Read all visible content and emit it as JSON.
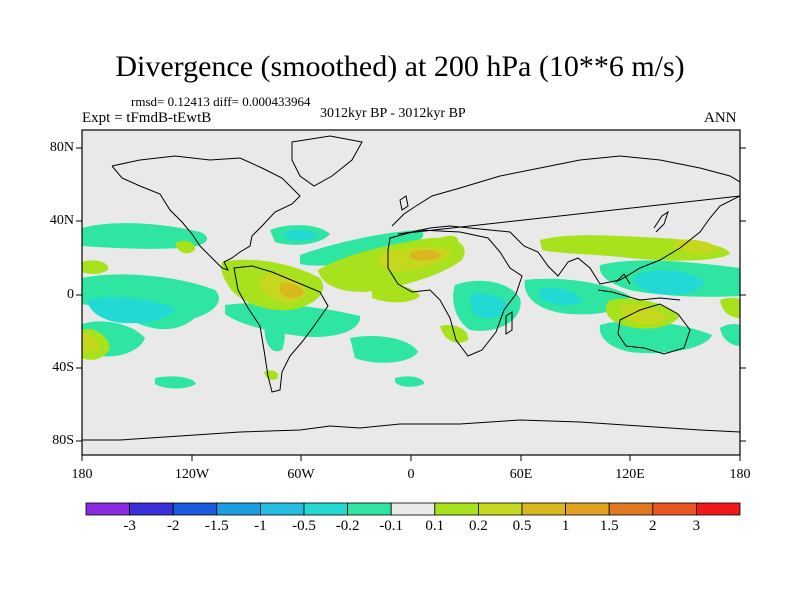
{
  "title": "Divergence (smoothed) at 200 hPa (10**6 m/s)",
  "stats": "rmsd= 0.12413 diff= 0.000433964",
  "experiment": "Expt = tFmdB-tEwtB",
  "period": "3012kyr BP - 3012kyr BP",
  "season": "ANN",
  "lat_labels": [
    "80N",
    "40N",
    "0",
    "40S",
    "80S"
  ],
  "lon_labels": [
    "180",
    "120W",
    "60W",
    "0",
    "60E",
    "120E",
    "180"
  ],
  "colorbar": {
    "colors": [
      "#8b2be2",
      "#3a2fd8",
      "#1a5be0",
      "#1a9ee0",
      "#22bde0",
      "#22d9d4",
      "#2ee6a2",
      "#e9e9e9",
      "#a8e21c",
      "#c6d81e",
      "#d8b81e",
      "#e0a020",
      "#e07a20",
      "#e85820",
      "#f01818"
    ],
    "labels": [
      "-3",
      "-2",
      "-1.5",
      "-1",
      "-0.5",
      "-0.2",
      "-0.1",
      "0.1",
      "0.2",
      "0.5",
      "1",
      "1.5",
      "2",
      "3"
    ]
  },
  "field_colors": {
    "background": "#e9e9e9",
    "neg_weak": "#2ee6a2",
    "neg_mid": "#22d9d4",
    "pos_weak": "#a8e21c",
    "pos_mid": "#c6d81e",
    "pos_strong": "#d8b81e"
  }
}
